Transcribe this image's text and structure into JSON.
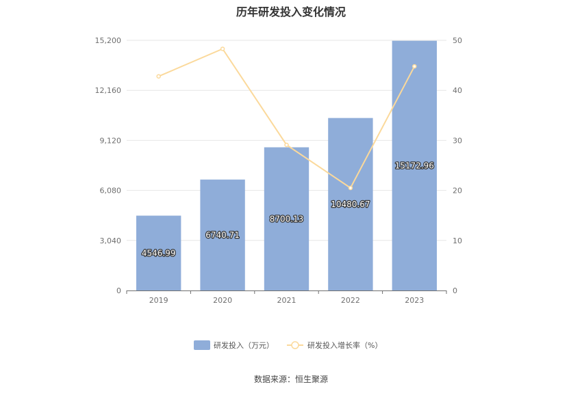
{
  "chart_data": {
    "type": "bar",
    "title": "历年研发投入变化情况",
    "categories": [
      "2019",
      "2020",
      "2021",
      "2022",
      "2023"
    ],
    "series": [
      {
        "name": "研发投入（万元）",
        "type": "bar",
        "axis": "left",
        "values": [
          4546.99,
          6740.71,
          8700.13,
          10480.67,
          15172.96
        ],
        "labels": [
          "4546.99",
          "6740.71",
          "8700.13",
          "10480.67",
          "15172.96"
        ],
        "color": "#8fadd9"
      },
      {
        "name": "研发投入增长率（%）",
        "type": "line",
        "axis": "right",
        "values": [
          42.8,
          48.3,
          29.1,
          20.5,
          44.8
        ],
        "color": "#fbd99b"
      }
    ],
    "y_left": {
      "ticks": [
        "0",
        "3,040",
        "6,080",
        "9,120",
        "12,160",
        "15,200"
      ],
      "ylim": [
        0,
        15200
      ]
    },
    "y_right": {
      "ticks": [
        "0",
        "10",
        "20",
        "30",
        "40",
        "50"
      ],
      "ylim": [
        0,
        50
      ]
    },
    "grid": true,
    "legend": "bottom-center"
  },
  "footer": {
    "source": "数据来源：恒生聚源"
  }
}
